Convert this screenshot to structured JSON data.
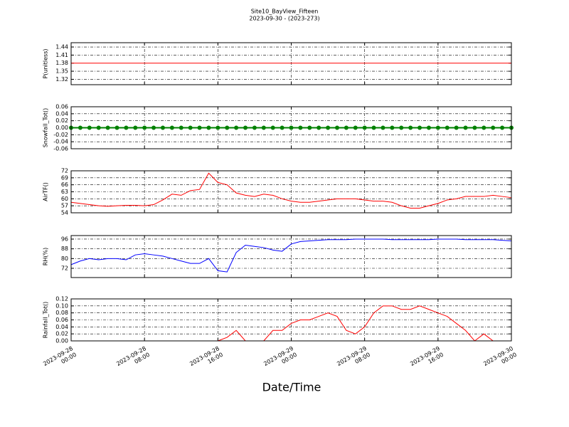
{
  "title": "Site10_BayView_Fifteen",
  "subtitle": "2023-09-30 - (2023-273)",
  "chart_data": [
    {
      "type": "line",
      "ylabel": "P(unitless)",
      "color": "#ff0000",
      "grid": true,
      "xlim": [
        "2023-09-28 00:00",
        "2023-09-30 00:00"
      ],
      "ylim": [
        1.3,
        1.456
      ],
      "yticks": [
        1.32,
        1.35,
        1.38,
        1.41,
        1.44
      ],
      "x": [
        "2023-09-28 00:00",
        "2023-09-28 01:00",
        "2023-09-28 02:00",
        "2023-09-28 03:00",
        "2023-09-28 04:00",
        "2023-09-28 05:00",
        "2023-09-28 06:00",
        "2023-09-28 07:00",
        "2023-09-28 08:00",
        "2023-09-28 09:00",
        "2023-09-28 10:00",
        "2023-09-28 11:00",
        "2023-09-28 12:00",
        "2023-09-28 13:00",
        "2023-09-28 14:00",
        "2023-09-28 15:00",
        "2023-09-28 16:00",
        "2023-09-28 17:00",
        "2023-09-28 18:00",
        "2023-09-28 19:00",
        "2023-09-28 20:00",
        "2023-09-28 21:00",
        "2023-09-28 22:00",
        "2023-09-28 23:00",
        "2023-09-29 00:00",
        "2023-09-29 01:00",
        "2023-09-29 02:00",
        "2023-09-29 03:00",
        "2023-09-29 04:00",
        "2023-09-29 05:00",
        "2023-09-29 06:00",
        "2023-09-29 07:00",
        "2023-09-29 08:00",
        "2023-09-29 09:00",
        "2023-09-29 10:00",
        "2023-09-29 11:00",
        "2023-09-29 12:00",
        "2023-09-29 13:00",
        "2023-09-29 14:00",
        "2023-09-29 15:00",
        "2023-09-29 16:00",
        "2023-09-29 17:00",
        "2023-09-29 18:00",
        "2023-09-29 19:00",
        "2023-09-29 20:00",
        "2023-09-29 21:00",
        "2023-09-29 22:00",
        "2023-09-29 23:00",
        "2023-09-30 00:00"
      ],
      "values": [
        1.38,
        1.38,
        1.38,
        1.38,
        1.38,
        1.38,
        1.38,
        1.38,
        1.38,
        1.38,
        1.38,
        1.38,
        1.38,
        1.38,
        1.38,
        1.38,
        1.38,
        1.38,
        1.38,
        1.38,
        1.38,
        1.38,
        1.38,
        1.38,
        1.38,
        1.38,
        1.38,
        1.38,
        1.38,
        1.38,
        1.38,
        1.38,
        1.38,
        1.38,
        1.38,
        1.38,
        1.38,
        1.38,
        1.38,
        1.38,
        1.38,
        1.38,
        1.38,
        1.38,
        1.38,
        1.38,
        1.38,
        1.38,
        1.38
      ]
    },
    {
      "type": "line",
      "ylabel": "Snowfall_Tot()",
      "color": "#008000",
      "marker": "o",
      "grid": true,
      "xlim": [
        "2023-09-28 00:00",
        "2023-09-30 00:00"
      ],
      "ylim": [
        -0.06,
        0.06
      ],
      "yticks": [
        -0.06,
        -0.04,
        -0.02,
        {
          "value": 0,
          "label": "0.00"
        },
        0.02,
        0.04,
        0.06
      ],
      "x": [
        "2023-09-28 00:00",
        "2023-09-28 01:00",
        "2023-09-28 02:00",
        "2023-09-28 03:00",
        "2023-09-28 04:00",
        "2023-09-28 05:00",
        "2023-09-28 06:00",
        "2023-09-28 07:00",
        "2023-09-28 08:00",
        "2023-09-28 09:00",
        "2023-09-28 10:00",
        "2023-09-28 11:00",
        "2023-09-28 12:00",
        "2023-09-28 13:00",
        "2023-09-28 14:00",
        "2023-09-28 15:00",
        "2023-09-28 16:00",
        "2023-09-28 17:00",
        "2023-09-28 18:00",
        "2023-09-28 19:00",
        "2023-09-28 20:00",
        "2023-09-28 21:00",
        "2023-09-28 22:00",
        "2023-09-28 23:00",
        "2023-09-29 00:00",
        "2023-09-29 01:00",
        "2023-09-29 02:00",
        "2023-09-29 03:00",
        "2023-09-29 04:00",
        "2023-09-29 05:00",
        "2023-09-29 06:00",
        "2023-09-29 07:00",
        "2023-09-29 08:00",
        "2023-09-29 09:00",
        "2023-09-29 10:00",
        "2023-09-29 11:00",
        "2023-09-29 12:00",
        "2023-09-29 13:00",
        "2023-09-29 14:00",
        "2023-09-29 15:00",
        "2023-09-29 16:00",
        "2023-09-29 17:00",
        "2023-09-29 18:00",
        "2023-09-29 19:00",
        "2023-09-29 20:00",
        "2023-09-29 21:00",
        "2023-09-29 22:00",
        "2023-09-29 23:00",
        "2023-09-30 00:00"
      ],
      "values": [
        0,
        0,
        0,
        0,
        0,
        0,
        0,
        0,
        0,
        0,
        0,
        0,
        0,
        0,
        0,
        0,
        0,
        0,
        0,
        0,
        0,
        0,
        0,
        0,
        0,
        0,
        0,
        0,
        0,
        0,
        0,
        0,
        0,
        0,
        0,
        0,
        0,
        0,
        0,
        0,
        0,
        0,
        0,
        0,
        0,
        0,
        0,
        0,
        0
      ]
    },
    {
      "type": "line",
      "ylabel": "AirTF()",
      "color": "#ff0000",
      "grid": true,
      "xlim": [
        "2023-09-28 00:00",
        "2023-09-30 00:00"
      ],
      "ylim": [
        54,
        72
      ],
      "yticks": [
        54,
        57,
        60,
        63,
        66,
        69,
        72
      ],
      "x": [
        "2023-09-28 00:00",
        "2023-09-28 01:00",
        "2023-09-28 02:00",
        "2023-09-28 03:00",
        "2023-09-28 04:00",
        "2023-09-28 05:00",
        "2023-09-28 06:00",
        "2023-09-28 07:00",
        "2023-09-28 08:00",
        "2023-09-28 09:00",
        "2023-09-28 10:00",
        "2023-09-28 11:00",
        "2023-09-28 12:00",
        "2023-09-28 13:00",
        "2023-09-28 14:00",
        "2023-09-28 15:00",
        "2023-09-28 16:00",
        "2023-09-28 17:00",
        "2023-09-28 18:00",
        "2023-09-28 19:00",
        "2023-09-28 20:00",
        "2023-09-28 21:00",
        "2023-09-28 22:00",
        "2023-09-28 23:00",
        "2023-09-29 00:00",
        "2023-09-29 01:00",
        "2023-09-29 02:00",
        "2023-09-29 03:00",
        "2023-09-29 04:00",
        "2023-09-29 05:00",
        "2023-09-29 06:00",
        "2023-09-29 07:00",
        "2023-09-29 08:00",
        "2023-09-29 09:00",
        "2023-09-29 10:00",
        "2023-09-29 11:00",
        "2023-09-29 12:00",
        "2023-09-29 13:00",
        "2023-09-29 14:00",
        "2023-09-29 15:00",
        "2023-09-29 16:00",
        "2023-09-29 17:00",
        "2023-09-29 18:00",
        "2023-09-29 19:00",
        "2023-09-29 20:00",
        "2023-09-29 21:00",
        "2023-09-29 22:00",
        "2023-09-29 23:00",
        "2023-09-30 00:00"
      ],
      "values": [
        58.5,
        58,
        57.5,
        57,
        56.8,
        57,
        57.2,
        57.2,
        57,
        57.5,
        59.5,
        62,
        61.5,
        63.5,
        64,
        71,
        67,
        66,
        62.5,
        61.5,
        61,
        62,
        61.5,
        60,
        59,
        58.5,
        58.5,
        59,
        59.5,
        60,
        60,
        60,
        59.5,
        59,
        59,
        58.5,
        57,
        56,
        56,
        57,
        58,
        59.5,
        60,
        61,
        61,
        61,
        61.5,
        61,
        60.5
      ]
    },
    {
      "type": "line",
      "ylabel": "RH(%)",
      "color": "#0000ff",
      "grid": true,
      "xlim": [
        "2023-09-28 00:00",
        "2023-09-30 00:00"
      ],
      "ylim": [
        64.4,
        98.9
      ],
      "yticks": [
        72,
        80,
        88,
        96
      ],
      "x": [
        "2023-09-28 00:00",
        "2023-09-28 01:00",
        "2023-09-28 02:00",
        "2023-09-28 03:00",
        "2023-09-28 04:00",
        "2023-09-28 05:00",
        "2023-09-28 06:00",
        "2023-09-28 07:00",
        "2023-09-28 08:00",
        "2023-09-28 09:00",
        "2023-09-28 10:00",
        "2023-09-28 11:00",
        "2023-09-28 12:00",
        "2023-09-28 13:00",
        "2023-09-28 14:00",
        "2023-09-28 15:00",
        "2023-09-28 16:00",
        "2023-09-28 17:00",
        "2023-09-28 18:00",
        "2023-09-28 19:00",
        "2023-09-28 20:00",
        "2023-09-28 21:00",
        "2023-09-28 22:00",
        "2023-09-28 23:00",
        "2023-09-29 00:00",
        "2023-09-29 01:00",
        "2023-09-29 02:00",
        "2023-09-29 03:00",
        "2023-09-29 04:00",
        "2023-09-29 05:00",
        "2023-09-29 06:00",
        "2023-09-29 07:00",
        "2023-09-29 08:00",
        "2023-09-29 09:00",
        "2023-09-29 10:00",
        "2023-09-29 11:00",
        "2023-09-29 12:00",
        "2023-09-29 13:00",
        "2023-09-29 14:00",
        "2023-09-29 15:00",
        "2023-09-29 16:00",
        "2023-09-29 17:00",
        "2023-09-29 18:00",
        "2023-09-29 19:00",
        "2023-09-29 20:00",
        "2023-09-29 21:00",
        "2023-09-29 22:00",
        "2023-09-29 23:00",
        "2023-09-30 00:00"
      ],
      "values": [
        75,
        78,
        80,
        79,
        80,
        80,
        79,
        83,
        84,
        83,
        82,
        80,
        78,
        76,
        76,
        80,
        70,
        69,
        85,
        91,
        90,
        89,
        87,
        86,
        92,
        94,
        94.5,
        95,
        95.5,
        95.5,
        95.5,
        96,
        96,
        96,
        96,
        95.5,
        95.5,
        95.5,
        95.5,
        95.5,
        96,
        96,
        96,
        95.5,
        95.5,
        95.5,
        95.5,
        95,
        94.5
      ]
    },
    {
      "type": "line",
      "ylabel": "Rainfall_Tot()",
      "xlabel": "Date/Time",
      "color": "#ff0000",
      "grid": true,
      "xlim": [
        "2023-09-28 00:00",
        "2023-09-30 00:00"
      ],
      "ylim": [
        0,
        0.12
      ],
      "yticks": [
        {
          "value": 0,
          "label": "0.00"
        },
        0.02,
        0.04,
        0.06,
        0.08,
        {
          "value": 0.1,
          "label": "0.10"
        },
        0.12
      ],
      "xticks": [
        {
          "value": "2023-09-28 00:00",
          "label": "2023-09-28\n00:00"
        },
        {
          "value": "2023-09-28 08:00",
          "label": "2023-09-28\n08:00"
        },
        {
          "value": "2023-09-28 16:00",
          "label": "2023-09-28\n16:00"
        },
        {
          "value": "2023-09-29 00:00",
          "label": "2023-09-29\n00:00"
        },
        {
          "value": "2023-09-29 08:00",
          "label": "2023-09-29\n08:00"
        },
        {
          "value": "2023-09-29 16:00",
          "label": "2023-09-29\n16:00"
        },
        {
          "value": "2023-09-30 00:00",
          "label": "2023-09-30\n00:00"
        }
      ],
      "x": [
        "2023-09-28 00:00",
        "2023-09-28 01:00",
        "2023-09-28 02:00",
        "2023-09-28 03:00",
        "2023-09-28 04:00",
        "2023-09-28 05:00",
        "2023-09-28 06:00",
        "2023-09-28 07:00",
        "2023-09-28 08:00",
        "2023-09-28 09:00",
        "2023-09-28 10:00",
        "2023-09-28 11:00",
        "2023-09-28 12:00",
        "2023-09-28 13:00",
        "2023-09-28 14:00",
        "2023-09-28 15:00",
        "2023-09-28 16:00",
        "2023-09-28 17:00",
        "2023-09-28 18:00",
        "2023-09-28 19:00",
        "2023-09-28 20:00",
        "2023-09-28 21:00",
        "2023-09-28 22:00",
        "2023-09-28 23:00",
        "2023-09-29 00:00",
        "2023-09-29 01:00",
        "2023-09-29 02:00",
        "2023-09-29 03:00",
        "2023-09-29 04:00",
        "2023-09-29 05:00",
        "2023-09-29 06:00",
        "2023-09-29 07:00",
        "2023-09-29 08:00",
        "2023-09-29 09:00",
        "2023-09-29 10:00",
        "2023-09-29 11:00",
        "2023-09-29 12:00",
        "2023-09-29 13:00",
        "2023-09-29 14:00",
        "2023-09-29 15:00",
        "2023-09-29 16:00",
        "2023-09-29 17:00",
        "2023-09-29 18:00",
        "2023-09-29 19:00",
        "2023-09-29 20:00",
        "2023-09-29 21:00",
        "2023-09-29 22:00",
        "2023-09-29 23:00",
        "2023-09-30 00:00"
      ],
      "values": [
        0,
        0,
        0,
        0,
        0,
        0,
        0,
        0,
        0,
        0,
        0,
        0,
        0,
        0,
        0,
        0,
        0,
        0.01,
        0.03,
        0,
        0,
        0,
        0.03,
        0.03,
        0.05,
        0.06,
        0.06,
        0.07,
        0.08,
        0.07,
        0.03,
        0.02,
        0.04,
        0.08,
        0.1,
        0.1,
        0.09,
        0.09,
        0.1,
        0.09,
        0.08,
        0.07,
        0.05,
        0.03,
        0,
        0.02,
        0,
        0,
        0
      ]
    }
  ]
}
